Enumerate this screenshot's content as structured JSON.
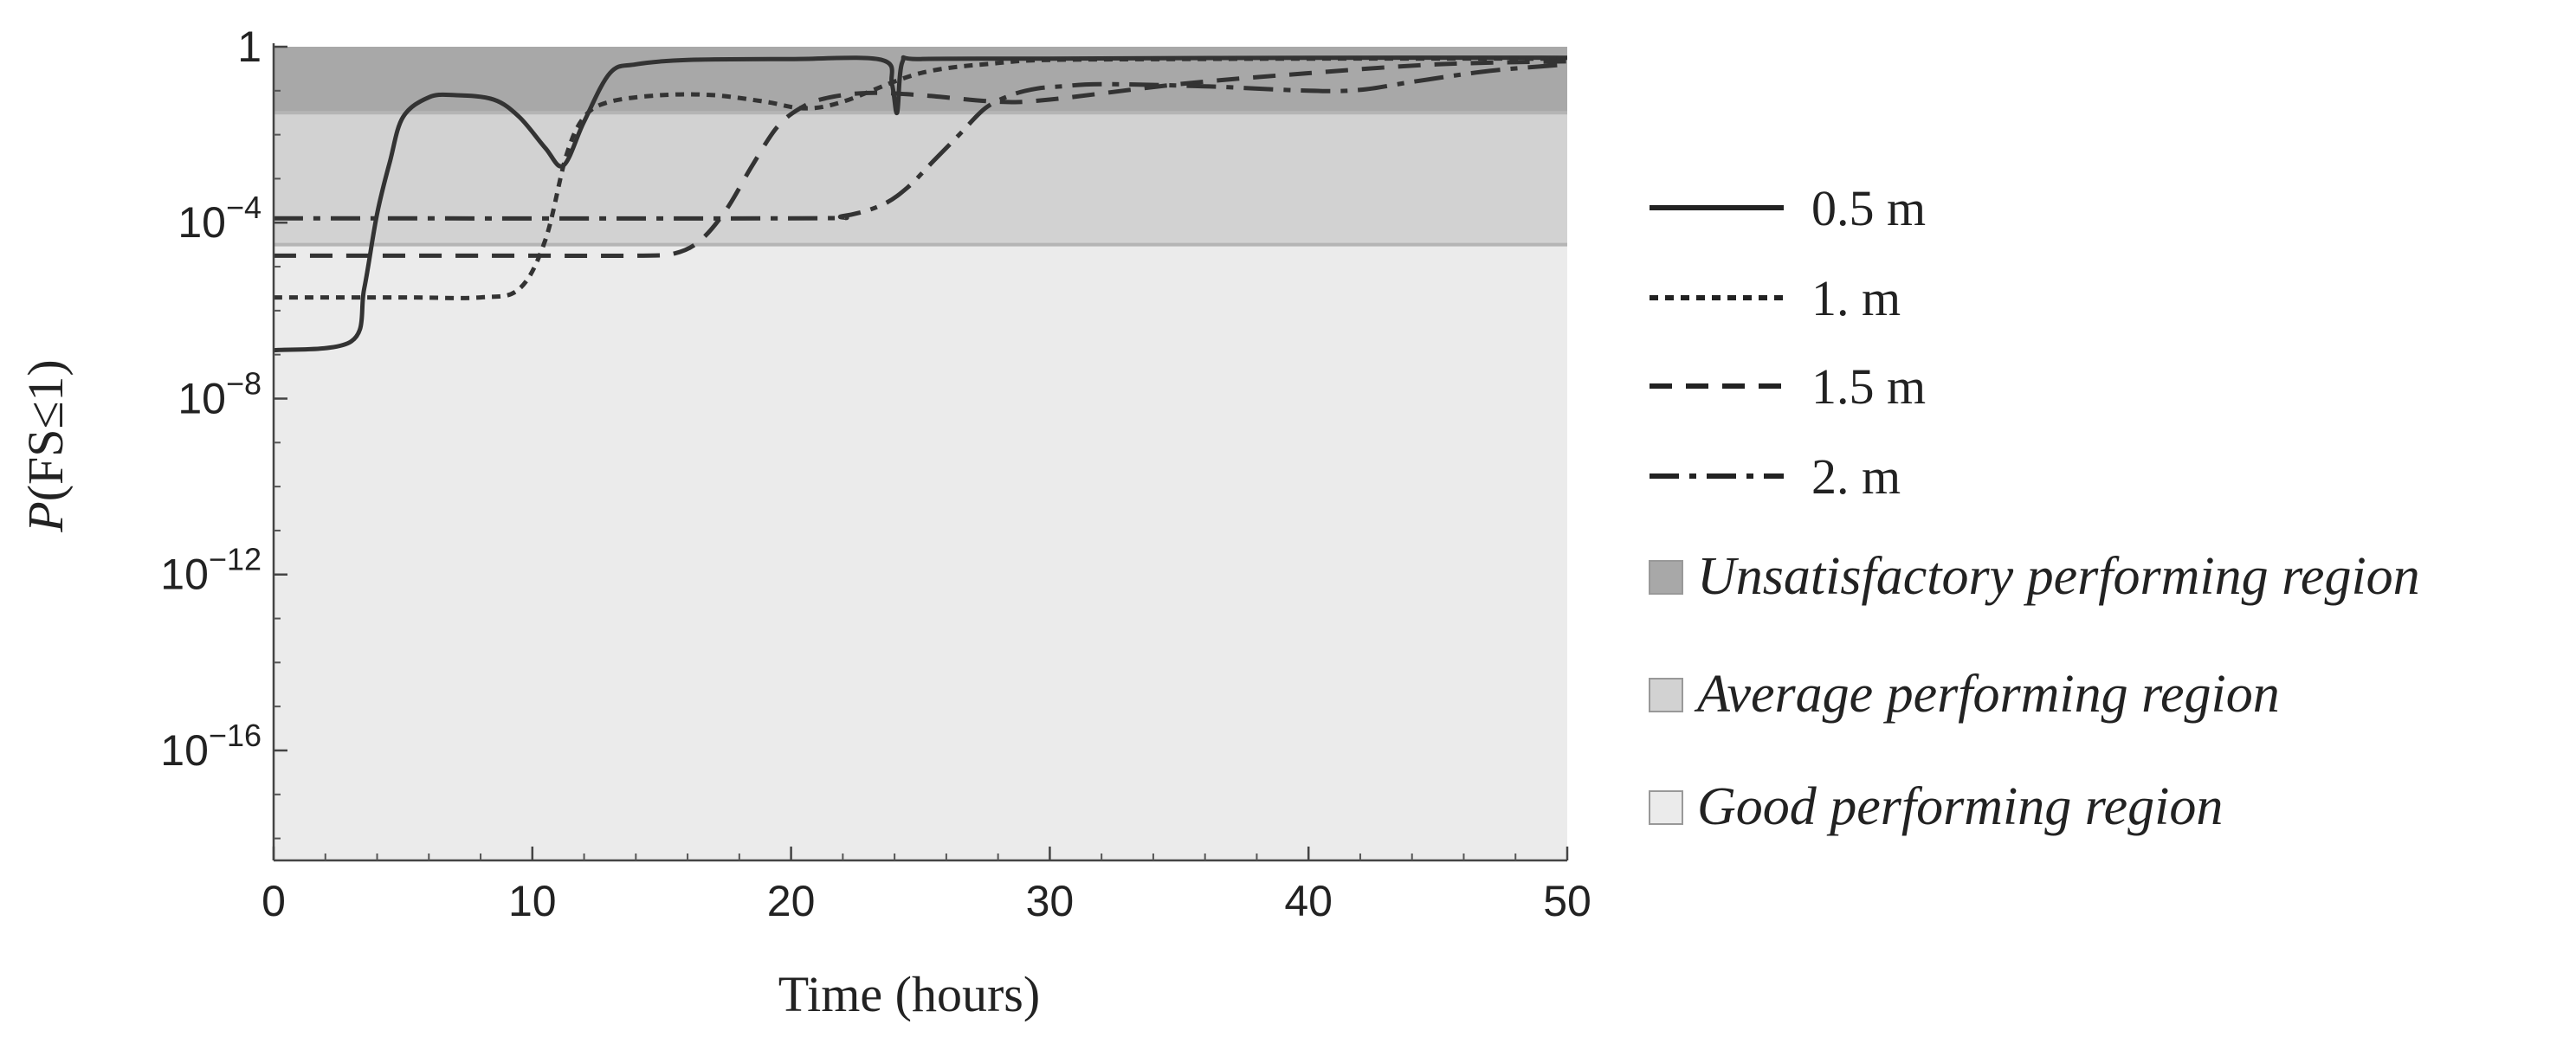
{
  "chart_data": {
    "type": "line",
    "xlabel": "Time (hours)",
    "ylabel": "P(FS≤1)",
    "ylabel_italic_part": "P",
    "ylabel_rest": "(FS≤1)",
    "xlim": [
      0,
      50
    ],
    "ylim_log10": [
      -18.5,
      0
    ],
    "y_scale": "log",
    "grid": false,
    "legend_position": "right",
    "x_ticks": [
      0,
      10,
      20,
      30,
      40,
      50
    ],
    "x_tick_labels": [
      "0",
      "10",
      "20",
      "30",
      "40",
      "50"
    ],
    "y_ticks_log10": [
      0,
      -4,
      -8,
      -12,
      -16
    ],
    "y_tick_labels": [
      {
        "base": "1",
        "exp": ""
      },
      {
        "base": "10",
        "exp": "−4"
      },
      {
        "base": "10",
        "exp": "−8"
      },
      {
        "base": "10",
        "exp": "−12"
      },
      {
        "base": "10",
        "exp": "−16"
      }
    ],
    "regions": [
      {
        "name": "Unsatisfactory performing region",
        "from_log10": -1.5,
        "to_log10": 0,
        "color": "#a8a8a8"
      },
      {
        "name": "Average performing region",
        "from_log10": -4.5,
        "to_log10": -1.5,
        "color": "#d2d2d2"
      },
      {
        "name": "Good performing region",
        "from_log10": -18.5,
        "to_log10": -4.5,
        "color": "#ebebeb"
      }
    ],
    "series": [
      {
        "name": "0.5 m",
        "style": "solid",
        "points_x": [
          0,
          3.0,
          3.5,
          4.0,
          4.5,
          5.0,
          6.0,
          7.0,
          8.5,
          9.5,
          10.5,
          11.2,
          12.0,
          13.0,
          14.0,
          16.0,
          20.0,
          23.5,
          23.9,
          24.1,
          24.3,
          25.0,
          30.0,
          40.0,
          50.0
        ],
        "points_y_log10": [
          -6.9,
          -6.7,
          -5.5,
          -3.8,
          -2.6,
          -1.6,
          -1.15,
          -1.1,
          -1.2,
          -1.6,
          -2.3,
          -2.7,
          -1.7,
          -0.6,
          -0.4,
          -0.3,
          -0.28,
          -0.3,
          -0.85,
          -1.5,
          -0.35,
          -0.28,
          -0.27,
          -0.25,
          -0.25
        ]
      },
      {
        "name": "1. m",
        "style": "dotted",
        "points_x": [
          0,
          5.0,
          8.0,
          9.5,
          10.5,
          11.3,
          12.0,
          13.0,
          15.0,
          17.0,
          19.0,
          20.5,
          22.0,
          25.0,
          28.0,
          30.0,
          35.0,
          40.0,
          50.0
        ],
        "points_y_log10": [
          -5.7,
          -5.7,
          -5.7,
          -5.5,
          -4.4,
          -2.5,
          -1.6,
          -1.25,
          -1.1,
          -1.1,
          -1.25,
          -1.4,
          -1.25,
          -0.6,
          -0.37,
          -0.3,
          -0.28,
          -0.27,
          -0.27
        ]
      },
      {
        "name": "1.5 m",
        "style": "dashed",
        "points_x": [
          0,
          10.0,
          14.0,
          15.5,
          16.5,
          17.5,
          18.5,
          19.5,
          20.5,
          21.5,
          23.0,
          25.0,
          28.0,
          30.0,
          35.0,
          40.0,
          45.0,
          50.0
        ],
        "points_y_log10": [
          -4.75,
          -4.75,
          -4.75,
          -4.7,
          -4.4,
          -3.7,
          -2.7,
          -1.8,
          -1.35,
          -1.15,
          -1.05,
          -1.1,
          -1.25,
          -1.2,
          -0.85,
          -0.6,
          -0.4,
          -0.33
        ]
      },
      {
        "name": "2. m",
        "style": "dashdot",
        "points_x": [
          0,
          20.0,
          22.0,
          23.5,
          24.5,
          25.5,
          26.5,
          27.5,
          28.5,
          29.5,
          30.5,
          32.0,
          36.0,
          40.0,
          42.0,
          44.0,
          47.0,
          50.0
        ],
        "points_y_log10": [
          -3.9,
          -3.9,
          -3.85,
          -3.6,
          -3.2,
          -2.6,
          -2.0,
          -1.4,
          -1.1,
          -0.95,
          -0.9,
          -0.85,
          -0.9,
          -1.0,
          -0.98,
          -0.8,
          -0.55,
          -0.4
        ]
      }
    ]
  }
}
